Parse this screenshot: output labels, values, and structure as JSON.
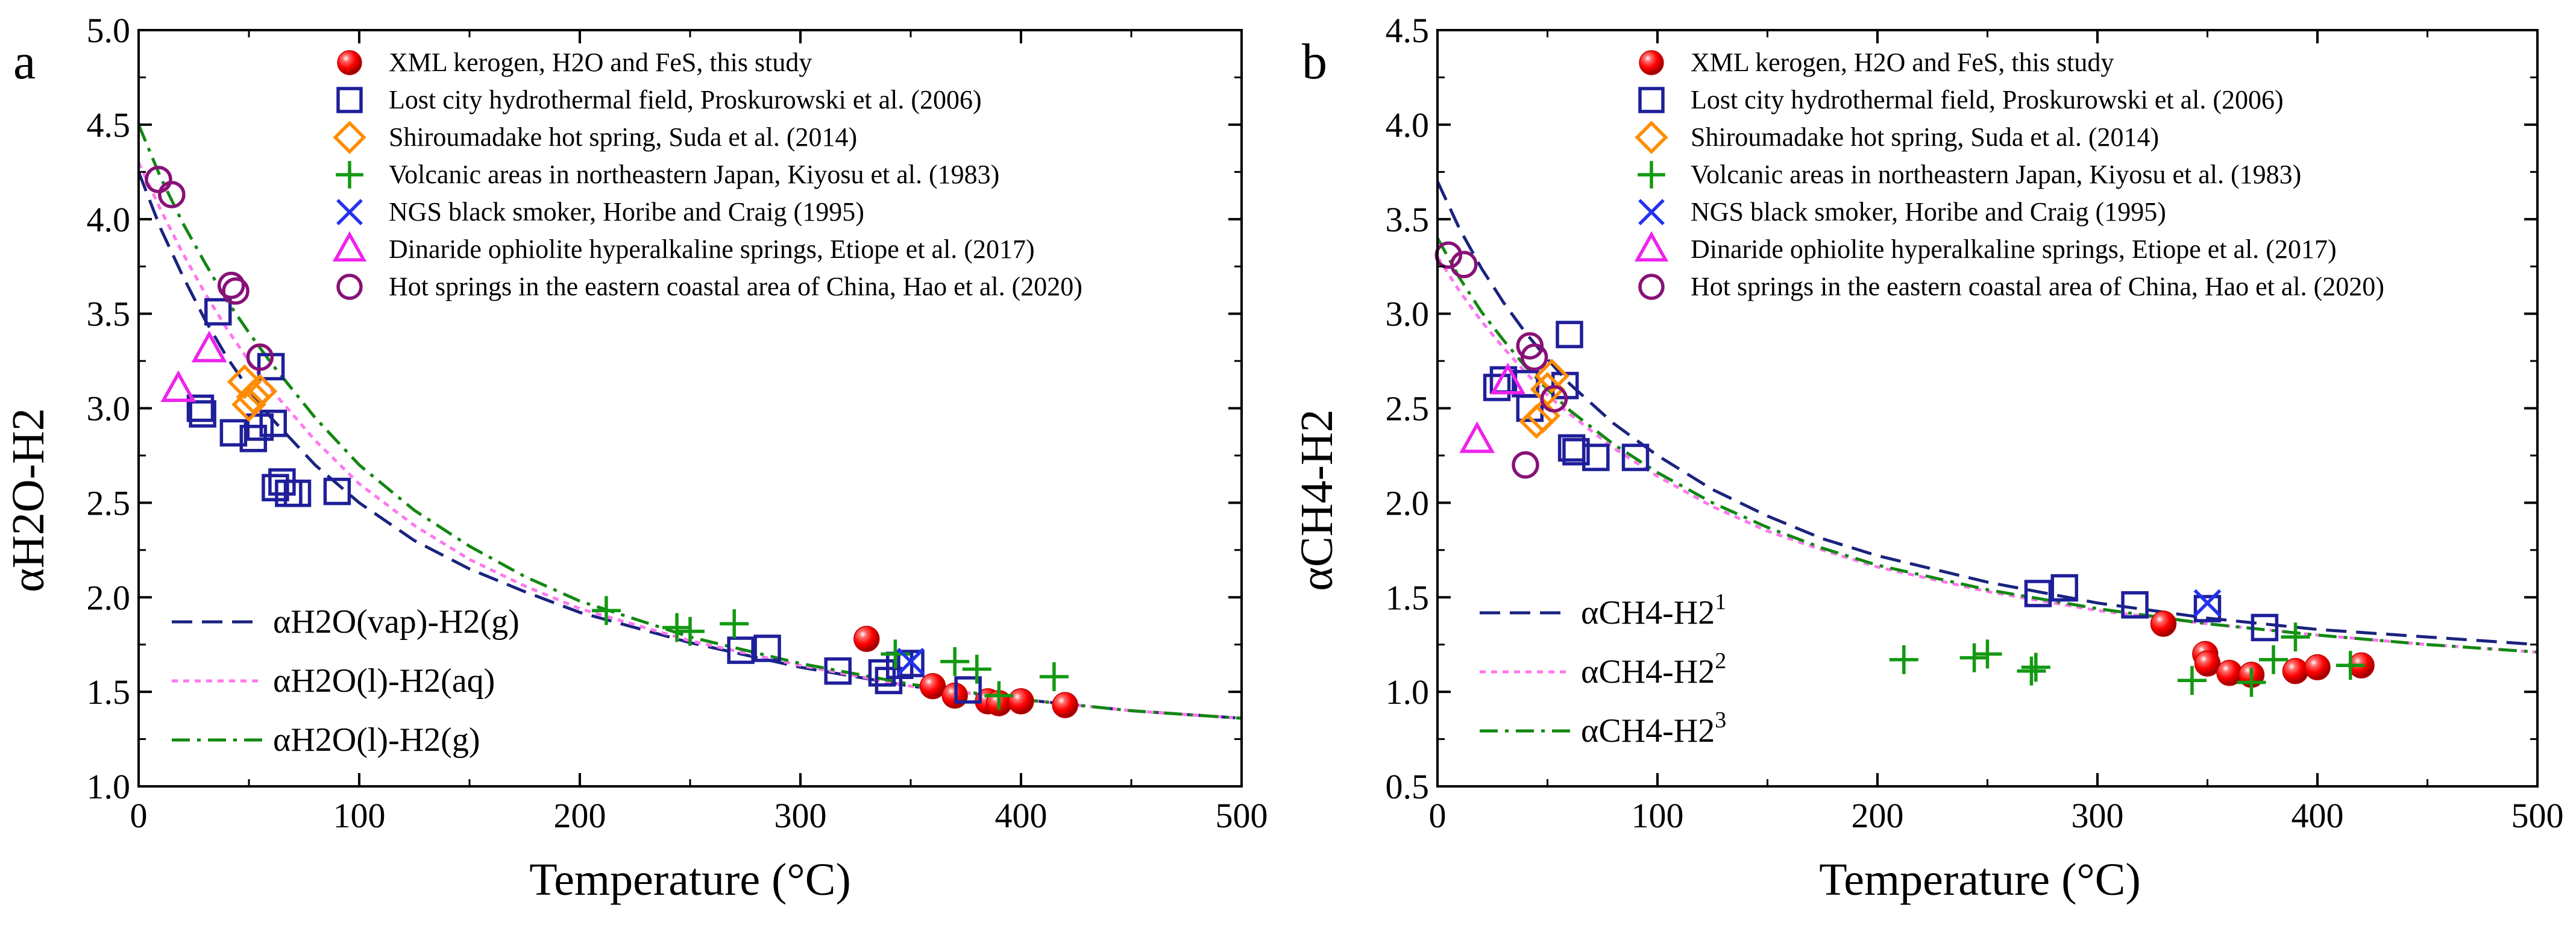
{
  "colors": {
    "this_study": "#ff0000",
    "lost_city": "#1f1f9a",
    "shiroumadake": "#ff8c00",
    "volcanic": "#119911",
    "ngs": "#2233ee",
    "dinaride": "#ee22ee",
    "hot_springs": "#881177",
    "curve_vap": "#1a237e",
    "curve_aq": "#ff77ee",
    "curve_g": "#118811"
  },
  "chart_data": [
    {
      "type": "scatter",
      "panel_label": "a",
      "xlabel": "Temperature (°C)",
      "ylabel": "αH2O-H2",
      "xlim": [
        0,
        500
      ],
      "ylim": [
        1.0,
        5.0
      ],
      "xticks": [
        0,
        100,
        200,
        300,
        400,
        500
      ],
      "yticks": [
        1.0,
        1.5,
        2.0,
        2.5,
        3.0,
        3.5,
        4.0,
        4.5,
        5.0
      ],
      "legend": [
        "XML kerogen, H2O and FeS, this study",
        "Lost city hydrothermal field, Proskurowski et al. (2006)",
        "Shiroumadake hot spring, Suda et al. (2014)",
        "Volcanic areas in northeastern Japan, Kiyosu et al. (1983)",
        "NGS black smoker, Horibe and Craig (1995)",
        "Dinaride ophiolite hyperalkaline springs, Etiope et al. (2017)",
        "Hot springs in the eastern coastal area of China, Hao et al. (2020)"
      ],
      "curves": [
        {
          "name": "αH2O(vap)-H2(g)",
          "style": "dash",
          "color_key": "curve_vap",
          "x": [
            0,
            10,
            20,
            30,
            40,
            50,
            60,
            80,
            100,
            125,
            150,
            175,
            200,
            250,
            300,
            350,
            400,
            450,
            500
          ],
          "y": [
            4.25,
            3.95,
            3.7,
            3.47,
            3.27,
            3.1,
            2.95,
            2.7,
            2.5,
            2.3,
            2.15,
            2.03,
            1.92,
            1.76,
            1.63,
            1.53,
            1.46,
            1.4,
            1.36
          ]
        },
        {
          "name": "αH2O(l)-H2(aq)",
          "style": "dot",
          "color_key": "curve_aq",
          "x": [
            0,
            10,
            20,
            30,
            40,
            50,
            60,
            80,
            100,
            125,
            150,
            175,
            200,
            250,
            300,
            350,
            400,
            450,
            500
          ],
          "y": [
            4.3,
            4.05,
            3.82,
            3.61,
            3.42,
            3.25,
            3.1,
            2.83,
            2.6,
            2.38,
            2.2,
            2.06,
            1.94,
            1.77,
            1.64,
            1.53,
            1.46,
            1.4,
            1.36
          ]
        },
        {
          "name": "αH2O(l)-H2(g)",
          "style": "dashdot",
          "color_key": "curve_g",
          "x": [
            0,
            10,
            20,
            30,
            40,
            50,
            60,
            80,
            100,
            125,
            150,
            175,
            200,
            250,
            300,
            350,
            400,
            450,
            500
          ],
          "y": [
            4.5,
            4.22,
            3.98,
            3.77,
            3.57,
            3.4,
            3.24,
            2.95,
            2.7,
            2.46,
            2.27,
            2.11,
            1.98,
            1.79,
            1.65,
            1.54,
            1.46,
            1.4,
            1.36
          ]
        }
      ],
      "series": [
        {
          "name": "XML kerogen, H2O and FeS, this study",
          "marker": "sphere",
          "color_key": "this_study",
          "x": [
            330,
            360,
            370,
            385,
            390,
            400,
            420
          ],
          "y": [
            1.78,
            1.53,
            1.48,
            1.45,
            1.44,
            1.45,
            1.43
          ]
        },
        {
          "name": "Lost city hydrothermal field, Proskurowski et al. (2006)",
          "marker": "square",
          "color_key": "lost_city",
          "x": [
            28,
            29,
            36,
            43,
            52,
            55,
            60,
            61,
            62,
            65,
            68,
            72,
            90,
            273,
            285,
            317,
            337,
            340,
            345,
            350,
            376
          ],
          "y": [
            3.0,
            2.97,
            3.51,
            2.87,
            2.84,
            2.9,
            3.22,
            2.92,
            2.58,
            2.61,
            2.55,
            2.55,
            2.56,
            1.72,
            1.73,
            1.61,
            1.6,
            1.56,
            1.64,
            1.65,
            1.51
          ]
        },
        {
          "name": "Shiroumadake hot spring, Suda et al. (2014)",
          "marker": "diamond",
          "color_key": "shiroumadake",
          "x": [
            48,
            52,
            55,
            50
          ],
          "y": [
            3.14,
            3.06,
            3.09,
            3.02
          ]
        },
        {
          "name": "Volcanic areas in northeastern Japan, Kiyosu et al. (1983)",
          "marker": "plus",
          "color_key": "volcanic",
          "x": [
            212,
            244,
            250,
            270,
            343,
            370,
            380,
            390,
            415
          ],
          "y": [
            1.93,
            1.84,
            1.82,
            1.86,
            1.7,
            1.66,
            1.62,
            1.48,
            1.58
          ]
        },
        {
          "name": "NGS black smoker, Horibe and Craig (1995)",
          "marker": "x",
          "color_key": "ngs",
          "x": [
            350
          ],
          "y": [
            1.66
          ]
        },
        {
          "name": "Dinaride ophiolite hyperalkaline springs, Etiope et al. (2017)",
          "marker": "triangle",
          "color_key": "dinaride",
          "x": [
            18,
            32
          ],
          "y": [
            3.1,
            3.31
          ]
        },
        {
          "name": "Hot springs in the eastern coastal area of China, Hao et al. (2020)",
          "marker": "circle",
          "color_key": "hot_springs",
          "x": [
            9,
            15,
            42,
            44,
            55
          ],
          "y": [
            4.21,
            4.13,
            3.65,
            3.62,
            3.27
          ]
        }
      ]
    },
    {
      "type": "scatter",
      "panel_label": "b",
      "xlabel": "Temperature (°C)",
      "ylabel": "αCH4-H2",
      "xlim": [
        0,
        500
      ],
      "ylim": [
        0.5,
        4.5
      ],
      "xticks": [
        0,
        100,
        200,
        300,
        400,
        500
      ],
      "yticks": [
        0.5,
        1.0,
        1.5,
        2.0,
        2.5,
        3.0,
        3.5,
        4.0,
        4.5
      ],
      "legend": [
        "XML kerogen, H2O and FeS, this study",
        "Lost city hydrothermal field, Proskurowski et al. (2006)",
        "Shiroumadake hot spring, Suda et al. (2014)",
        "Volcanic areas in northeastern Japan, Kiyosu et al. (1983)",
        "NGS black smoker, Horibe and Craig (1995)",
        "Dinaride ophiolite hyperalkaline springs, Etiope et al. (2017)",
        "Hot springs in the eastern coastal area of China, Hao et al. (2020)"
      ],
      "curves": [
        {
          "name": "αCH4-H2",
          "sup": "1",
          "style": "dash",
          "color_key": "curve_vap",
          "x": [
            0,
            10,
            20,
            30,
            40,
            50,
            60,
            80,
            100,
            125,
            150,
            175,
            200,
            250,
            300,
            350,
            400,
            450,
            500
          ],
          "y": [
            3.7,
            3.45,
            3.24,
            3.06,
            2.9,
            2.76,
            2.63,
            2.42,
            2.25,
            2.07,
            1.93,
            1.81,
            1.72,
            1.58,
            1.47,
            1.39,
            1.33,
            1.29,
            1.25
          ]
        },
        {
          "name": "αCH4-H2",
          "sup": "2",
          "style": "dot",
          "color_key": "curve_aq",
          "x": [
            0,
            10,
            20,
            30,
            40,
            50,
            60,
            80,
            100,
            125,
            150,
            175,
            200,
            250,
            300,
            350,
            400,
            450,
            500
          ],
          "y": [
            3.3,
            3.12,
            2.96,
            2.82,
            2.69,
            2.57,
            2.47,
            2.29,
            2.14,
            1.98,
            1.85,
            1.75,
            1.66,
            1.53,
            1.43,
            1.36,
            1.3,
            1.25,
            1.21
          ]
        },
        {
          "name": "αCH4-H2",
          "sup": "3",
          "style": "dashdot",
          "color_key": "curve_g",
          "x": [
            0,
            10,
            20,
            30,
            40,
            50,
            60,
            80,
            100,
            125,
            150,
            175,
            200,
            250,
            300,
            350,
            400,
            450,
            500
          ],
          "y": [
            3.4,
            3.19,
            3.01,
            2.86,
            2.72,
            2.6,
            2.49,
            2.31,
            2.16,
            2.0,
            1.87,
            1.76,
            1.67,
            1.54,
            1.44,
            1.36,
            1.3,
            1.25,
            1.21
          ]
        }
      ],
      "series": [
        {
          "name": "XML kerogen, H2O and FeS, this study",
          "marker": "sphere",
          "color_key": "this_study",
          "x": [
            330,
            349,
            350,
            360,
            370,
            390,
            400,
            420
          ],
          "y": [
            1.36,
            1.2,
            1.15,
            1.1,
            1.09,
            1.11,
            1.13,
            1.14
          ]
        },
        {
          "name": "Lost city hydrothermal field, Proskurowski et al. (2006)",
          "marker": "square",
          "color_key": "lost_city",
          "x": [
            27,
            30,
            40,
            42,
            58,
            60,
            61,
            63,
            72,
            90,
            273,
            285,
            317,
            350,
            376
          ],
          "y": [
            2.61,
            2.65,
            2.63,
            2.5,
            2.62,
            2.89,
            2.29,
            2.27,
            2.24,
            2.24,
            1.52,
            1.55,
            1.46,
            1.44,
            1.34
          ]
        },
        {
          "name": "Shiroumadake hot spring, Suda et al. (2014)",
          "marker": "diamond",
          "color_key": "shiroumadake",
          "x": [
            45,
            48,
            52,
            50
          ],
          "y": [
            2.43,
            2.46,
            2.67,
            2.6
          ]
        },
        {
          "name": "Volcanic areas in northeastern Japan, Kiyosu et al. (1983)",
          "marker": "plus",
          "color_key": "volcanic",
          "x": [
            212,
            244,
            250,
            270,
            272,
            343,
            370,
            380,
            390,
            415
          ],
          "y": [
            1.17,
            1.18,
            1.2,
            1.11,
            1.13,
            1.06,
            1.05,
            1.17,
            1.29,
            1.14
          ]
        },
        {
          "name": "NGS black smoker, Horibe and Craig (1995)",
          "marker": "x",
          "color_key": "ngs",
          "x": [
            350
          ],
          "y": [
            1.47
          ]
        },
        {
          "name": "Dinaride ophiolite hyperalkaline springs, Etiope et al. (2017)",
          "marker": "triangle",
          "color_key": "dinaride",
          "x": [
            18,
            32
          ],
          "y": [
            2.33,
            2.64
          ]
        },
        {
          "name": "Hot springs in the eastern coastal area of China, Hao et al. (2020)",
          "marker": "circle",
          "color_key": "hot_springs",
          "x": [
            5,
            12,
            40,
            42,
            44,
            53
          ],
          "y": [
            3.31,
            3.26,
            2.2,
            2.83,
            2.77,
            2.55
          ]
        }
      ]
    }
  ]
}
